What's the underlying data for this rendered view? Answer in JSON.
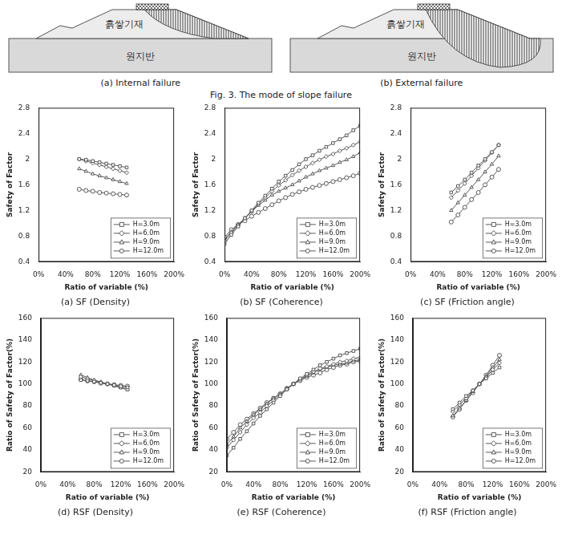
{
  "diagram": {
    "panels": [
      {
        "caption": "(a) Internal failure",
        "fill_label": "흙쌓기재",
        "ground_label": "원지반"
      },
      {
        "caption": "(b) External failure",
        "fill_label": "흙쌓기재",
        "ground_label": "원지반"
      }
    ],
    "title": "Fig. 3. The mode of slope failure"
  },
  "chart_data": [
    {
      "type": "line",
      "title": "(a) SF (Density)",
      "x_label": "Ratio of variable (%)",
      "y_label": "Safety of Factor",
      "grid": false,
      "legend": "lower right",
      "xlim": [
        0,
        200
      ],
      "xticks": [
        {
          "value": 0,
          "label": "0%"
        },
        {
          "value": 40,
          "label": "40%"
        },
        {
          "value": 80,
          "label": "80%"
        },
        {
          "value": 120,
          "label": "120%"
        },
        {
          "value": 160,
          "label": "160%"
        },
        {
          "value": 200,
          "label": "200%"
        }
      ],
      "ylim": [
        0.4,
        2.8
      ],
      "yticks": [
        0.4,
        0.8,
        1.2,
        1.6,
        2,
        2.4,
        2.8
      ],
      "x": [
        60,
        70,
        80,
        90,
        100,
        110,
        120,
        130
      ],
      "series": [
        {
          "name": "H=3.0m",
          "color": "#595959",
          "marker": "square",
          "values": [
            2.0,
            1.99,
            1.97,
            1.95,
            1.93,
            1.91,
            1.89,
            1.87
          ]
        },
        {
          "name": "H=6.0m",
          "color": "#595959",
          "marker": "diamond",
          "values": [
            2.0,
            1.97,
            1.94,
            1.91,
            1.88,
            1.85,
            1.82,
            1.79
          ]
        },
        {
          "name": "H=9.0m",
          "color": "#595959",
          "marker": "triangle",
          "values": [
            1.85,
            1.81,
            1.77,
            1.74,
            1.71,
            1.68,
            1.65,
            1.62
          ]
        },
        {
          "name": "H=12.0m",
          "color": "#595959",
          "marker": "circle",
          "values": [
            1.53,
            1.51,
            1.5,
            1.48,
            1.47,
            1.46,
            1.45,
            1.44
          ]
        }
      ]
    },
    {
      "type": "line",
      "title": "(b) SF (Coherence)",
      "x_label": "Ratio of variable (%)",
      "y_label": "Safety of Factor",
      "grid": false,
      "legend": "lower right",
      "xlim": [
        0,
        200
      ],
      "xticks": [
        {
          "value": 0,
          "label": "0%"
        },
        {
          "value": 40,
          "label": "40%"
        },
        {
          "value": 80,
          "label": "80%"
        },
        {
          "value": 120,
          "label": "120%"
        },
        {
          "value": 160,
          "label": "160%"
        },
        {
          "value": 200,
          "label": "200%"
        }
      ],
      "ylim": [
        0.4,
        2.8
      ],
      "yticks": [
        0.4,
        0.8,
        1.2,
        1.6,
        2,
        2.4,
        2.8
      ],
      "x": [
        0,
        10,
        20,
        30,
        40,
        50,
        60,
        70,
        80,
        90,
        100,
        110,
        120,
        130,
        140,
        150,
        160,
        170,
        180,
        190,
        200
      ],
      "series": [
        {
          "name": "H=3.0m",
          "color": "#595959",
          "marker": "square",
          "values": [
            0.68,
            0.82,
            0.95,
            1.08,
            1.2,
            1.32,
            1.43,
            1.54,
            1.65,
            1.74,
            1.83,
            1.92,
            2.0,
            2.06,
            2.13,
            2.19,
            2.25,
            2.31,
            2.37,
            2.45,
            2.52
          ]
        },
        {
          "name": "H=6.0m",
          "color": "#595959",
          "marker": "diamond",
          "values": [
            0.72,
            0.85,
            0.97,
            1.08,
            1.19,
            1.3,
            1.4,
            1.5,
            1.59,
            1.67,
            1.75,
            1.82,
            1.88,
            1.94,
            1.99,
            2.04,
            2.08,
            2.13,
            2.17,
            2.22,
            2.27
          ]
        },
        {
          "name": "H=9.0m",
          "color": "#595959",
          "marker": "triangle",
          "values": [
            0.75,
            0.87,
            0.98,
            1.08,
            1.18,
            1.28,
            1.36,
            1.44,
            1.5,
            1.55,
            1.6,
            1.66,
            1.72,
            1.77,
            1.82,
            1.86,
            1.9,
            1.95,
            1.99,
            2.04,
            2.1
          ]
        },
        {
          "name": "H=12.0m",
          "color": "#595959",
          "marker": "circle",
          "values": [
            0.78,
            0.9,
            0.98,
            1.04,
            1.11,
            1.17,
            1.23,
            1.29,
            1.35,
            1.4,
            1.45,
            1.49,
            1.53,
            1.56,
            1.59,
            1.62,
            1.65,
            1.68,
            1.71,
            1.74,
            1.78
          ]
        }
      ]
    },
    {
      "type": "line",
      "title": "(c) SF (Friction angle)",
      "x_label": "Ratio of variable (%)",
      "y_label": "Safety of Factor",
      "grid": false,
      "legend": "lower right",
      "xlim": [
        0,
        200
      ],
      "xticks": [
        {
          "value": 0,
          "label": "0%"
        },
        {
          "value": 40,
          "label": "40%"
        },
        {
          "value": 80,
          "label": "80%"
        },
        {
          "value": 120,
          "label": "120%"
        },
        {
          "value": 160,
          "label": "160%"
        },
        {
          "value": 200,
          "label": "200%"
        }
      ],
      "ylim": [
        0.4,
        2.8
      ],
      "yticks": [
        0.4,
        0.8,
        1.2,
        1.6,
        2,
        2.4,
        2.8
      ],
      "x": [
        60,
        70,
        80,
        90,
        100,
        110,
        120,
        130
      ],
      "series": [
        {
          "name": "H=3.0m",
          "color": "#595959",
          "marker": "square",
          "values": [
            1.48,
            1.58,
            1.68,
            1.79,
            1.9,
            2.0,
            2.11,
            2.22
          ]
        },
        {
          "name": "H=6.0m",
          "color": "#595959",
          "marker": "diamond",
          "values": [
            1.4,
            1.51,
            1.62,
            1.74,
            1.86,
            1.98,
            2.1,
            2.22
          ]
        },
        {
          "name": "H=9.0m",
          "color": "#595959",
          "marker": "triangle",
          "values": [
            1.2,
            1.32,
            1.44,
            1.56,
            1.68,
            1.8,
            1.92,
            2.05
          ]
        },
        {
          "name": "H=12.0m",
          "color": "#595959",
          "marker": "circle",
          "values": [
            1.02,
            1.13,
            1.25,
            1.37,
            1.48,
            1.6,
            1.72,
            1.84
          ]
        }
      ]
    },
    {
      "type": "line",
      "title": "(d) RSF (Density)",
      "x_label": "Ratio of variable (%)",
      "y_label": "Ratio of Safety of Factor(%)",
      "grid": false,
      "legend": "lower right",
      "xlim": [
        0,
        200
      ],
      "xticks": [
        {
          "value": 0,
          "label": "0%"
        },
        {
          "value": 40,
          "label": "40%"
        },
        {
          "value": 80,
          "label": "80%"
        },
        {
          "value": 120,
          "label": "120%"
        },
        {
          "value": 160,
          "label": "160%"
        },
        {
          "value": 200,
          "label": "200%"
        }
      ],
      "ylim": [
        20,
        160
      ],
      "yticks": [
        20,
        40,
        60,
        80,
        100,
        120,
        140,
        160
      ],
      "x": [
        60,
        70,
        80,
        90,
        100,
        110,
        120,
        130
      ],
      "series": [
        {
          "name": "H=3.0m",
          "color": "#595959",
          "marker": "square",
          "values": [
            103.6,
            103.1,
            102.1,
            101.0,
            100,
            99.0,
            97.9,
            96.9
          ]
        },
        {
          "name": "H=6.0m",
          "color": "#595959",
          "marker": "diamond",
          "values": [
            106.4,
            104.8,
            103.2,
            101.6,
            100,
            98.4,
            96.8,
            95.2
          ]
        },
        {
          "name": "H=9.0m",
          "color": "#595959",
          "marker": "triangle",
          "values": [
            108.2,
            105.8,
            103.5,
            101.8,
            100,
            98.2,
            96.5,
            94.7
          ]
        },
        {
          "name": "H=12.0m",
          "color": "#595959",
          "marker": "circle",
          "values": [
            104.1,
            102.7,
            102.0,
            100.7,
            100,
            99.3,
            98.6,
            98.0
          ]
        }
      ]
    },
    {
      "type": "line",
      "title": "(e) RSF (Coherence)",
      "x_label": "Ratio of variable (%)",
      "y_label": "Ratio of Safety of Factor(%)",
      "grid": false,
      "legend": "lower right",
      "xlim": [
        0,
        200
      ],
      "xticks": [
        {
          "value": 0,
          "label": "0%"
        },
        {
          "value": 40,
          "label": "40%"
        },
        {
          "value": 80,
          "label": "80%"
        },
        {
          "value": 120,
          "label": "120%"
        },
        {
          "value": 160,
          "label": "160%"
        },
        {
          "value": 200,
          "label": "200%"
        }
      ],
      "ylim": [
        20,
        160
      ],
      "yticks": [
        20,
        40,
        60,
        80,
        100,
        120,
        140,
        160
      ],
      "x": [
        0,
        10,
        20,
        30,
        40,
        50,
        60,
        70,
        80,
        90,
        100,
        110,
        120,
        130,
        140,
        150,
        160,
        170,
        180,
        190,
        200
      ],
      "series": [
        {
          "name": "H=3.0m",
          "color": "#595959",
          "marker": "square",
          "values": [
            35,
            42,
            50,
            57,
            64,
            71,
            77,
            83,
            89,
            95,
            100,
            105,
            109,
            113,
            117,
            120,
            123,
            126,
            128,
            130,
            132
          ]
        },
        {
          "name": "H=6.0m",
          "color": "#595959",
          "marker": "diamond",
          "values": [
            42,
            49,
            56,
            63,
            69,
            74,
            80,
            85,
            90,
            95,
            100,
            104,
            108,
            111,
            114,
            116,
            118,
            120,
            121,
            123,
            124
          ]
        },
        {
          "name": "H=9.0m",
          "color": "#595959",
          "marker": "triangle",
          "values": [
            45,
            52,
            60,
            66,
            72,
            77,
            82,
            87,
            91,
            96,
            100,
            104,
            107,
            110,
            113,
            115,
            117,
            118,
            119,
            121,
            122
          ]
        },
        {
          "name": "H=12.0m",
          "color": "#595959",
          "marker": "circle",
          "values": [
            50,
            56,
            63,
            68,
            73,
            78,
            83,
            87,
            91,
            96,
            100,
            103,
            106,
            108,
            110,
            113,
            115,
            117,
            118,
            120,
            121
          ]
        }
      ]
    },
    {
      "type": "line",
      "title": "(f) RSF (Friction angle)",
      "x_label": "Ratio of variable (%)",
      "y_label": "Ratio of Safety of Factor(%)",
      "grid": false,
      "legend": "lower right",
      "xlim": [
        0,
        200
      ],
      "xticks": [
        {
          "value": 0,
          "label": "0%"
        },
        {
          "value": 40,
          "label": "40%"
        },
        {
          "value": 80,
          "label": "80%"
        },
        {
          "value": 120,
          "label": "120%"
        },
        {
          "value": 160,
          "label": "160%"
        },
        {
          "value": 200,
          "label": "200%"
        }
      ],
      "ylim": [
        20,
        160
      ],
      "yticks": [
        20,
        40,
        60,
        80,
        100,
        120,
        140,
        160
      ],
      "x": [
        60,
        70,
        80,
        90,
        100,
        110,
        120,
        130
      ],
      "series": [
        {
          "name": "H=3.0m",
          "color": "#595959",
          "marker": "square",
          "values": [
            77,
            83,
            89,
            94,
            100,
            105,
            110,
            115
          ]
        },
        {
          "name": "H=6.0m",
          "color": "#595959",
          "marker": "diamond",
          "values": [
            75,
            81,
            87,
            94,
            100,
            106,
            113,
            119
          ]
        },
        {
          "name": "H=9.0m",
          "color": "#595959",
          "marker": "triangle",
          "values": [
            71,
            78,
            85,
            93,
            100,
            107,
            115,
            122
          ]
        },
        {
          "name": "H=12.0m",
          "color": "#595959",
          "marker": "circle",
          "values": [
            70,
            77,
            85,
            92,
            100,
            108,
            117,
            126
          ]
        }
      ]
    }
  ]
}
